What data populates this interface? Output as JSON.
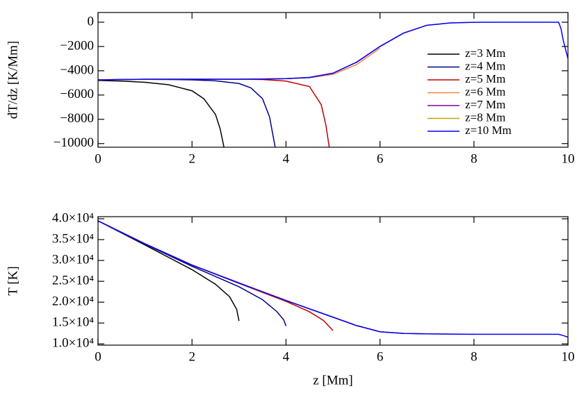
{
  "chart_data": [
    {
      "type": "line",
      "ylabel": "dT/dz [K/Mm]",
      "xlim": [
        0,
        10
      ],
      "xticks": [
        0,
        2,
        4,
        6,
        8,
        10
      ],
      "ylim": [
        -10300,
        800
      ],
      "yticks": [
        0,
        {
          "value": -2000,
          "label": "−2000"
        },
        {
          "value": -4000,
          "label": "−4000"
        },
        {
          "value": -6000,
          "label": "−6000"
        },
        {
          "value": -8000,
          "label": "−8000"
        },
        {
          "value": -10000,
          "label": "−10000"
        }
      ],
      "legend": "right",
      "series": [
        {
          "name": "z=3 Mm",
          "color": "#000000",
          "x": [
            0,
            0.5,
            1,
            1.5,
            2,
            2.25,
            2.5,
            2.6,
            2.68
          ],
          "values": [
            -4800,
            -4850,
            -4950,
            -5150,
            -5650,
            -6300,
            -7600,
            -8800,
            -10300
          ]
        },
        {
          "name": "z=4 Mm",
          "color": "#00008b",
          "x": [
            0,
            0.5,
            1,
            1.5,
            2,
            2.5,
            3,
            3.25,
            3.5,
            3.65,
            3.77
          ],
          "values": [
            -4750,
            -4720,
            -4710,
            -4720,
            -4750,
            -4830,
            -5050,
            -5400,
            -6300,
            -7800,
            -10300
          ]
        },
        {
          "name": "z=5 Mm",
          "color": "#c00000",
          "x": [
            0,
            0.5,
            1,
            1.5,
            2,
            2.5,
            3,
            3.5,
            4,
            4.5,
            4.75,
            4.85,
            4.92
          ],
          "values": [
            -4750,
            -4720,
            -4700,
            -4700,
            -4700,
            -4700,
            -4700,
            -4720,
            -4850,
            -5300,
            -6800,
            -8500,
            -10300
          ]
        },
        {
          "name": "z=6 Mm",
          "color": "#ff8040",
          "x": [
            0,
            0.5,
            1,
            1.5,
            2,
            2.5,
            3,
            3.5,
            4,
            4.5,
            5,
            5.5,
            6
          ],
          "values": [
            -4750,
            -4720,
            -4700,
            -4700,
            -4700,
            -4700,
            -4700,
            -4680,
            -4650,
            -4580,
            -4300,
            -3500,
            -2150
          ]
        },
        {
          "name": "z=7 Mm",
          "color": "#7b00a0",
          "x": [
            0,
            0.5,
            1,
            1.5,
            2,
            2.5,
            3,
            3.5,
            4,
            4.5,
            5,
            5.5,
            6,
            6.5,
            7
          ],
          "values": [
            -4750,
            -4720,
            -4700,
            -4700,
            -4700,
            -4700,
            -4700,
            -4680,
            -4650,
            -4550,
            -4200,
            -3300,
            -2000,
            -900,
            -250
          ]
        },
        {
          "name": "z=8 Mm",
          "color": "#c8a000",
          "x": [
            0,
            0.5,
            1,
            1.5,
            2,
            2.5,
            3,
            3.5,
            4,
            4.5,
            5,
            5.5,
            6,
            6.5,
            7,
            7.5,
            8
          ],
          "values": [
            -4750,
            -4720,
            -4700,
            -4700,
            -4700,
            -4700,
            -4700,
            -4680,
            -4650,
            -4550,
            -4200,
            -3300,
            -2000,
            -900,
            -250,
            -60,
            -10
          ]
        },
        {
          "name": "z=10 Mm",
          "color": "#0000ff",
          "x": [
            0,
            0.5,
            1,
            1.5,
            2,
            2.5,
            3,
            3.5,
            4,
            4.5,
            5,
            5.5,
            6,
            6.5,
            7,
            7.5,
            8,
            8.5,
            9,
            9.5,
            9.8,
            9.85,
            9.9,
            10
          ],
          "values": [
            -4750,
            -4720,
            -4700,
            -4700,
            -4700,
            -4700,
            -4700,
            -4680,
            -4650,
            -4550,
            -4200,
            -3300,
            -2000,
            -900,
            -250,
            -60,
            -10,
            0,
            0,
            0,
            0,
            -500,
            -1500,
            -3000
          ]
        }
      ]
    },
    {
      "type": "line",
      "ylabel": "T [K]",
      "xlabel": "z [Mm]",
      "xlim": [
        0,
        10
      ],
      "xticks": [
        0,
        2,
        4,
        6,
        8,
        10
      ],
      "ylim": [
        9700,
        40500
      ],
      "yticks": [
        {
          "value": 10000,
          "label": "1.0×10⁴"
        },
        {
          "value": 15000,
          "label": "1.5×10⁴"
        },
        {
          "value": 20000,
          "label": "2.0×10⁴"
        },
        {
          "value": 25000,
          "label": "2.5×10⁴"
        },
        {
          "value": 30000,
          "label": "3.0×10⁴"
        },
        {
          "value": 35000,
          "label": "3.5×10⁴"
        },
        {
          "value": 40000,
          "label": "4.0×10⁴"
        }
      ],
      "series": [
        {
          "color": "#000000",
          "x": [
            0,
            1,
            2,
            2.5,
            2.8,
            2.95,
            3
          ],
          "values": [
            39500,
            33700,
            27800,
            24300,
            21300,
            18300,
            15500
          ]
        },
        {
          "color": "#00008b",
          "x": [
            0,
            1,
            2,
            3,
            3.5,
            3.8,
            3.95,
            4
          ],
          "values": [
            39500,
            33900,
            28600,
            23700,
            20600,
            17800,
            15800,
            14300
          ]
        },
        {
          "color": "#c00000",
          "x": [
            0,
            1,
            2,
            3,
            4,
            4.5,
            4.8,
            5
          ],
          "values": [
            39500,
            34000,
            28900,
            24500,
            20200,
            17700,
            15600,
            13200
          ]
        },
        {
          "color": "#ff8040",
          "x": [
            0,
            1,
            2,
            3,
            4,
            5,
            5.5,
            6
          ],
          "values": [
            39500,
            34000,
            28900,
            24600,
            20400,
            16400,
            14400,
            12900
          ]
        },
        {
          "color": "#7b00a0",
          "x": [
            0,
            1,
            2,
            3,
            4,
            5,
            5.5,
            6,
            6.5,
            7
          ],
          "values": [
            39500,
            34000,
            28900,
            24600,
            20400,
            16400,
            14400,
            12900,
            12500,
            12400
          ]
        },
        {
          "color": "#c8a000",
          "x": [
            0,
            1,
            2,
            3,
            4,
            5,
            5.5,
            6,
            6.5,
            7,
            8
          ],
          "values": [
            39500,
            34000,
            28900,
            24600,
            20400,
            16400,
            14400,
            12900,
            12500,
            12400,
            12300
          ]
        },
        {
          "color": "#0000ff",
          "x": [
            0,
            1,
            2,
            3,
            4,
            5,
            5.5,
            6,
            6.5,
            7,
            8,
            9,
            9.8,
            9.9,
            10
          ],
          "values": [
            39500,
            34000,
            28900,
            24600,
            20400,
            16400,
            14400,
            12900,
            12500,
            12400,
            12300,
            12300,
            12300,
            12000,
            11600
          ]
        }
      ]
    }
  ]
}
